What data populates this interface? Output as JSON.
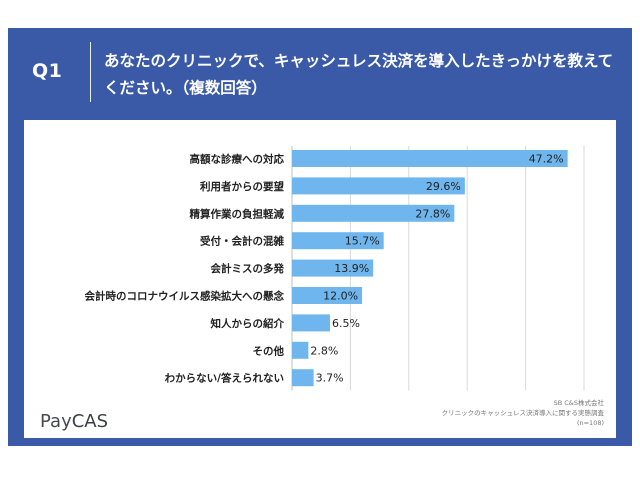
{
  "header": {
    "question_label": "Q1",
    "question_text": "あなたのクリニックで、キャッシュレス決済を導入したきっかけを教えてください。（複数回答）"
  },
  "colors": {
    "background": "#3a5aa7",
    "bar": "#6fb6ee",
    "panel": "#ffffff",
    "grid": "#d9d9d9"
  },
  "chart_data": {
    "type": "bar",
    "orientation": "horizontal",
    "categories": [
      "高額な診療への対応",
      "利用者からの要望",
      "精算作業の負担軽減",
      "受付・会計の混雑",
      "会計ミスの多発",
      "会計時のコロナウイルス感染拡大への懸念",
      "知人からの紹介",
      "その他",
      "わからない/答えられない"
    ],
    "values": [
      47.2,
      29.6,
      27.8,
      15.7,
      13.9,
      12.0,
      6.5,
      2.8,
      3.7
    ],
    "value_labels": [
      "47.2%",
      "29.6%",
      "27.8%",
      "15.7%",
      "13.9%",
      "12.0%",
      "6.5%",
      "2.8%",
      "3.7%"
    ],
    "xlim": [
      0,
      50
    ],
    "grid": true
  },
  "footer": {
    "logo_left": "Pay",
    "logo_right": "CAS",
    "source_lines": [
      "SB C&S株式会社",
      "クリニックのキャッシュレス決済導入に関する実態調査",
      "(n=108)"
    ]
  }
}
